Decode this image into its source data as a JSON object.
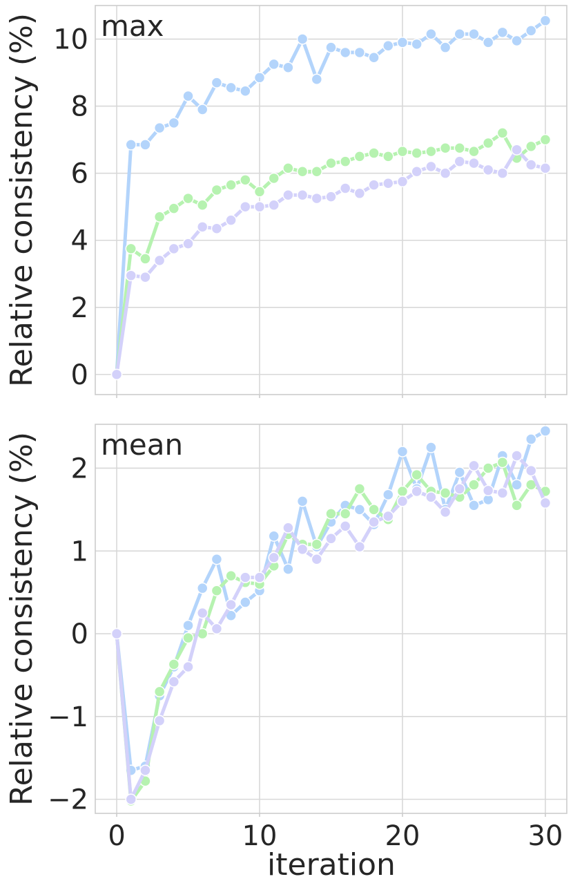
{
  "figure": {
    "xlabel": "iteration",
    "ylabel": "Relative consistency (%)"
  },
  "chart_data": [
    {
      "type": "line",
      "title": "max",
      "xlabel": "",
      "ylabel": "Relative consistency (%)",
      "xlim": [
        -1.5,
        31.5
      ],
      "ylim": [
        -0.6,
        11.0
      ],
      "xticks": [
        0,
        10,
        20,
        30
      ],
      "yticks": [
        0,
        2,
        4,
        6,
        8,
        10
      ],
      "grid": true,
      "legend": "none",
      "x": [
        0,
        1,
        2,
        3,
        4,
        5,
        6,
        7,
        8,
        9,
        10,
        11,
        12,
        13,
        14,
        15,
        16,
        17,
        18,
        19,
        20,
        21,
        22,
        23,
        24,
        25,
        26,
        27,
        28,
        29,
        30
      ],
      "series": [
        {
          "color": "#b3d4fb",
          "values": [
            0,
            6.85,
            6.85,
            7.35,
            7.5,
            8.3,
            7.9,
            8.7,
            8.55,
            8.45,
            8.85,
            9.25,
            9.15,
            10.0,
            8.8,
            9.75,
            9.6,
            9.6,
            9.45,
            9.8,
            9.9,
            9.85,
            10.15,
            9.75,
            10.15,
            10.15,
            9.9,
            10.2,
            9.95,
            10.25,
            10.55
          ]
        },
        {
          "color": "#b6f2b0",
          "values": [
            0,
            3.75,
            3.45,
            4.7,
            4.95,
            5.25,
            5.05,
            5.5,
            5.65,
            5.8,
            5.45,
            5.85,
            6.15,
            6.05,
            6.05,
            6.3,
            6.35,
            6.5,
            6.6,
            6.5,
            6.65,
            6.6,
            6.65,
            6.75,
            6.75,
            6.65,
            6.9,
            7.2,
            6.45,
            6.8,
            7.0
          ]
        },
        {
          "color": "#d3d1fa",
          "values": [
            0,
            2.95,
            2.9,
            3.4,
            3.75,
            3.9,
            4.4,
            4.35,
            4.6,
            5.0,
            5.0,
            5.05,
            5.35,
            5.35,
            5.25,
            5.3,
            5.55,
            5.4,
            5.65,
            5.7,
            5.75,
            6.05,
            6.2,
            6.0,
            6.35,
            6.3,
            6.1,
            6.0,
            6.7,
            6.25,
            6.15
          ]
        }
      ]
    },
    {
      "type": "line",
      "title": "mean",
      "xlabel": "iteration",
      "ylabel": "Relative consistency (%)",
      "xlim": [
        -1.5,
        31.5
      ],
      "ylim": [
        -2.17,
        2.53
      ],
      "xticks": [
        0,
        10,
        20,
        30
      ],
      "yticks": [
        -2,
        -1,
        0,
        1,
        2
      ],
      "ytick_labels": [
        "−2",
        "−1",
        "0",
        "1",
        "2"
      ],
      "grid": true,
      "legend": "none",
      "x": [
        0,
        1,
        2,
        3,
        4,
        5,
        6,
        7,
        8,
        9,
        10,
        11,
        12,
        13,
        14,
        15,
        16,
        17,
        18,
        19,
        20,
        21,
        22,
        23,
        24,
        25,
        26,
        27,
        28,
        29,
        30
      ],
      "series": [
        {
          "color": "#b3d4fb",
          "values": [
            0,
            -1.65,
            -1.6,
            -0.75,
            -0.4,
            0.1,
            0.55,
            0.9,
            0.22,
            0.38,
            0.52,
            1.18,
            0.78,
            1.6,
            1.05,
            1.35,
            1.55,
            1.5,
            1.32,
            1.68,
            2.2,
            1.75,
            2.25,
            1.5,
            1.95,
            1.55,
            1.62,
            2.15,
            1.8,
            2.35,
            2.45
          ]
        },
        {
          "color": "#b6f2b0",
          "values": [
            0,
            -2.02,
            -1.78,
            -0.7,
            -0.37,
            -0.05,
            0.0,
            0.52,
            0.7,
            0.62,
            0.6,
            0.82,
            1.2,
            1.08,
            1.08,
            1.45,
            1.45,
            1.75,
            1.5,
            1.38,
            1.72,
            1.92,
            1.72,
            1.7,
            1.65,
            1.8,
            2.0,
            2.07,
            1.55,
            1.8,
            1.72
          ]
        },
        {
          "color": "#d3d1fa",
          "values": [
            0,
            -2.0,
            -1.65,
            -1.05,
            -0.58,
            -0.4,
            0.25,
            0.06,
            0.35,
            0.68,
            0.68,
            0.92,
            1.28,
            1.02,
            0.9,
            1.15,
            1.3,
            1.05,
            1.35,
            1.42,
            1.6,
            1.72,
            1.65,
            1.47,
            1.75,
            2.03,
            1.73,
            1.7,
            2.15,
            1.97,
            1.58
          ]
        }
      ]
    }
  ]
}
